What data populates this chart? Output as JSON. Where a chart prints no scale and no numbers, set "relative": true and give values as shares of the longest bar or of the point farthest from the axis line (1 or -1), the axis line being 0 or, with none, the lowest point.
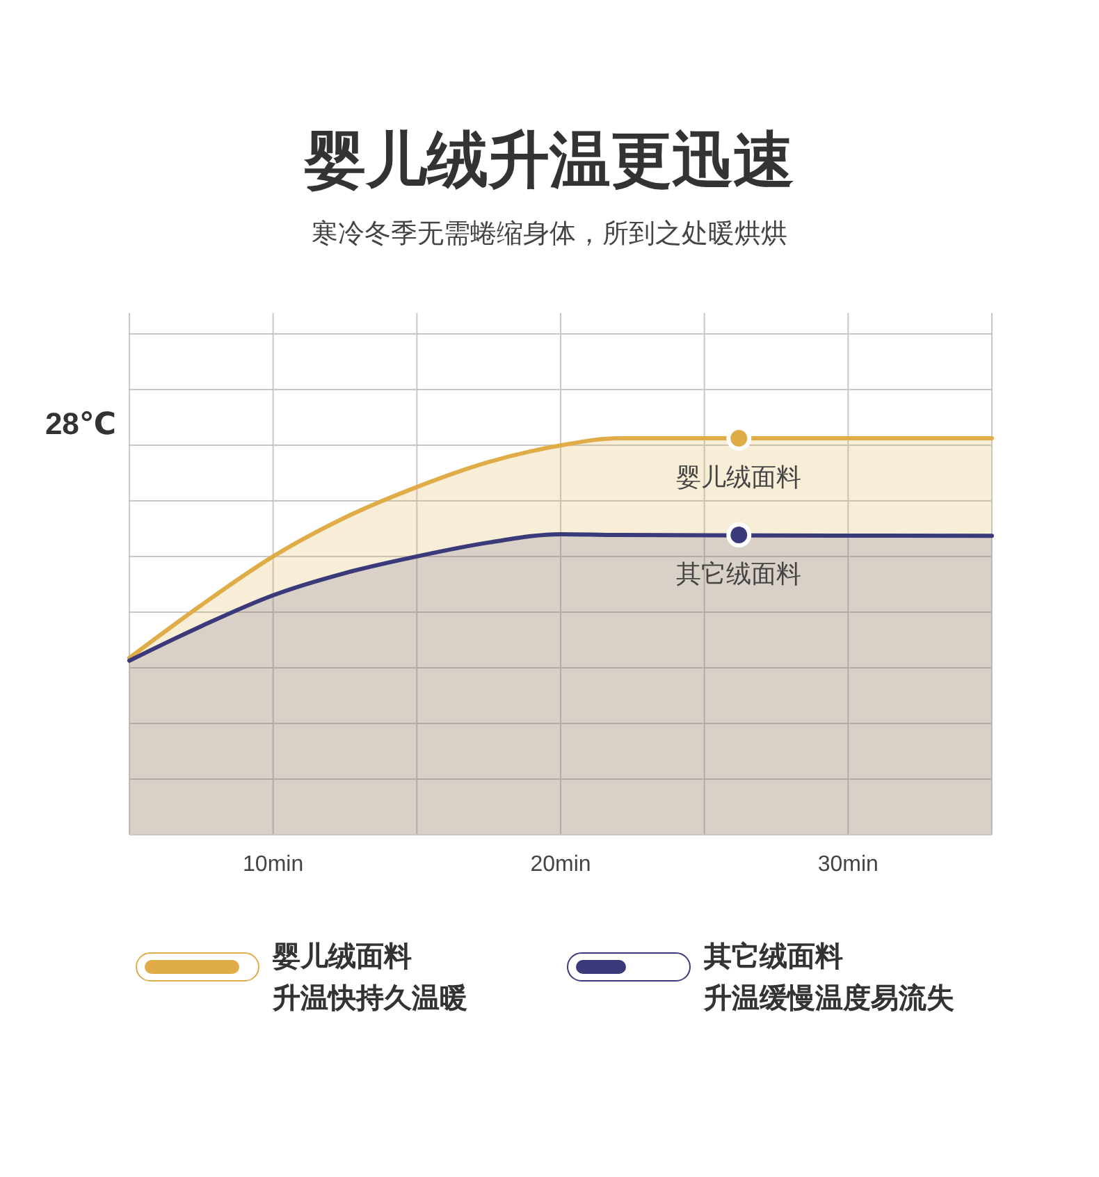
{
  "chart_data": {
    "type": "area",
    "title": "婴儿绒升温更迅速",
    "subtitle": "寒冷冬季无需蜷缩身体，所到之处暖烘烘",
    "ylabel": "28℃",
    "relative": true,
    "x": [
      5,
      7.5,
      10,
      12.5,
      15,
      17.5,
      20,
      22,
      35
    ],
    "xlim": [
      5,
      35
    ],
    "xticks": [
      {
        "value": 10,
        "label": "10min"
      },
      {
        "value": 20,
        "label": "20min"
      },
      {
        "value": 30,
        "label": "30min"
      }
    ],
    "grid": true,
    "legend": "bottom",
    "series": [
      {
        "name": "婴儿绒面料",
        "color": "#e0ac48",
        "values": [
          0.446,
          0.579,
          0.702,
          0.8,
          0.877,
          0.94,
          0.982,
          1,
          1
        ]
      },
      {
        "name": "其它绒面料",
        "color": "#3a3a7a",
        "values": [
          0.439,
          0.526,
          0.604,
          0.66,
          0.702,
          0.737,
          0.758,
          0.756,
          0.754
        ]
      }
    ],
    "annotations": [
      "升温快持久温暖",
      "升温缓慢温度易流失",
      {
        "text": "婴儿绒面料",
        "x": 26.2,
        "y": 1
      },
      {
        "text": "其它绒面料",
        "x": 26.2,
        "y": 0.756
      }
    ]
  }
}
